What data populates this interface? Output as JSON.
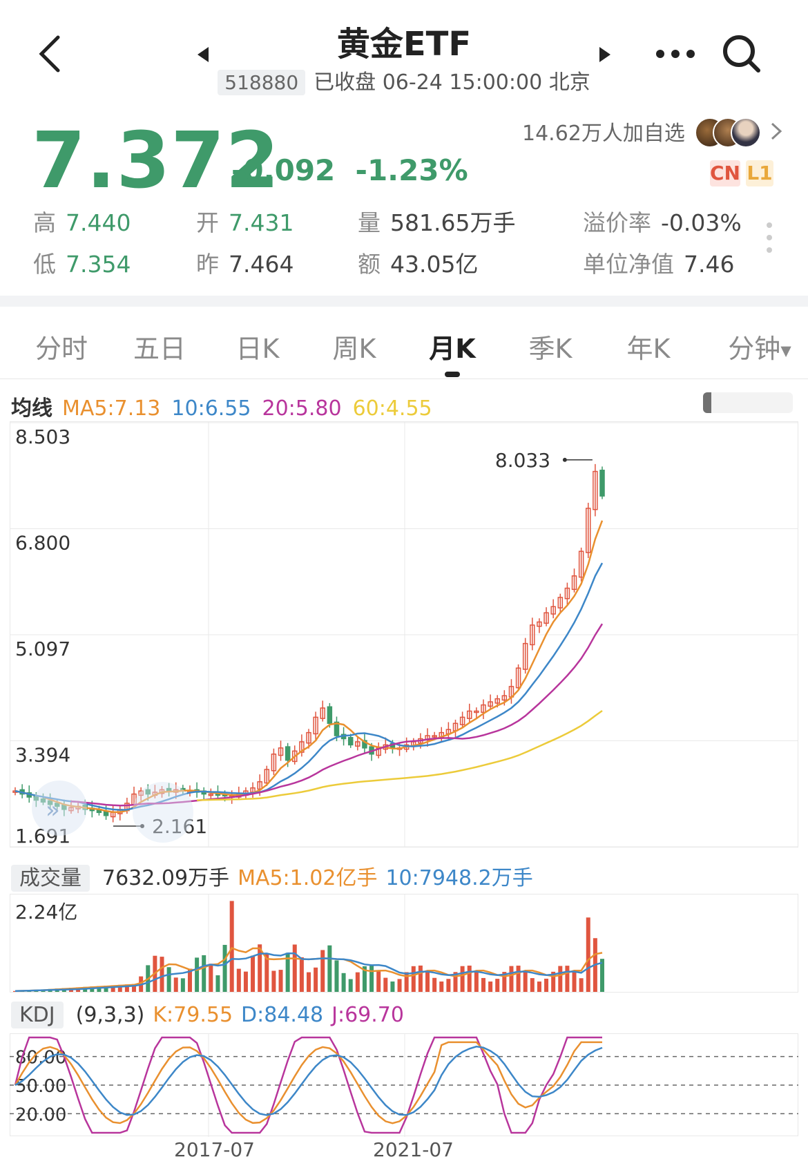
{
  "header": {
    "title": "黄金ETF",
    "code": "518880",
    "status": "已收盘 06-24 15:00:00 北京"
  },
  "quote": {
    "price": "7.372",
    "change": "-0.092",
    "change_pct": "-1.23%",
    "watchers": "14.62万人加自选",
    "badge_cn": "CN",
    "badge_l1": "L1"
  },
  "stats": {
    "high_label": "高",
    "high": "7.440",
    "low_label": "低",
    "low": "7.354",
    "open_label": "开",
    "open": "7.431",
    "prev_label": "昨",
    "prev": "7.464",
    "volume_label": "量",
    "volume": "581.65万手",
    "amount_label": "额",
    "amount": "43.05亿",
    "premium_label": "溢价率",
    "premium": "-0.03%",
    "nav_label": "单位净值",
    "nav": "7.46"
  },
  "tabs": [
    "分时",
    "五日",
    "日K",
    "周K",
    "月K",
    "季K",
    "年K",
    "分钟"
  ],
  "active_tab": 4,
  "colors": {
    "up": "#e0553f",
    "down": "#3f9a6a",
    "ma5": "#e9902f",
    "ma10": "#3d87c8",
    "ma20": "#b8359c",
    "ma60": "#eccb3a",
    "grid": "#e8e8e8"
  },
  "ma_legend": {
    "label": "均线",
    "ma5": "MA5:7.13",
    "ma10": "10:6.55",
    "ma20": "20:5.80",
    "ma60": "60:4.55"
  },
  "volume_legend": {
    "label": "成交量",
    "current": "7632.09万手",
    "ma5": "MA5:1.02亿手",
    "ma10": "10:7948.2万手"
  },
  "kdj_legend": {
    "label": "KDJ",
    "params": "(9,3,3)",
    "k": "K:79.55",
    "d": "D:84.48",
    "j": "J:69.70"
  },
  "chart_data": [
    {
      "type": "candlestick",
      "title": "月K",
      "y_ticks": [
        "8.503",
        "6.800",
        "5.097",
        "3.394",
        "1.691"
      ],
      "ylim": [
        1.691,
        8.503
      ],
      "x_ticks": [
        "2017-07",
        "2021-07"
      ],
      "max_label": "8.033",
      "min_label": "2.161",
      "series": [
        {
          "name": "MA5",
          "value": 7.13
        },
        {
          "name": "10",
          "value": 6.55
        },
        {
          "name": "20",
          "value": 5.8
        },
        {
          "name": "60",
          "value": 4.55
        }
      ],
      "close_path": [
        2.6,
        2.55,
        2.5,
        2.45,
        2.42,
        2.38,
        2.35,
        2.3,
        2.33,
        2.35,
        2.3,
        2.28,
        2.25,
        2.2,
        2.25,
        2.3,
        2.4,
        2.55,
        2.6,
        2.55,
        2.58,
        2.62,
        2.6,
        2.62,
        2.6,
        2.6,
        2.58,
        2.55,
        2.55,
        2.53,
        2.52,
        2.52,
        2.55,
        2.6,
        2.65,
        2.75,
        2.95,
        3.2,
        3.3,
        3.1,
        3.25,
        3.4,
        3.55,
        3.8,
        3.95,
        3.7,
        3.5,
        3.45,
        3.35,
        3.4,
        3.3,
        3.2,
        3.3,
        3.35,
        3.3,
        3.3,
        3.35,
        3.4,
        3.45,
        3.5,
        3.5,
        3.55,
        3.6,
        3.7,
        3.8,
        3.9,
        3.9,
        4.0,
        4.05,
        4.1,
        4.15,
        4.3,
        4.6,
        5.0,
        5.3,
        5.35,
        5.5,
        5.6,
        5.75,
        5.9,
        6.1,
        6.5,
        7.2,
        7.8,
        7.4
      ]
    },
    {
      "type": "bar",
      "title": "成交量",
      "y_ticks": [
        "2.24亿"
      ],
      "ylim": [
        0,
        2.24
      ],
      "unit": "亿手"
    },
    {
      "type": "line",
      "title": "KDJ",
      "y_ticks": [
        "80.00",
        "50.00",
        "20.00"
      ],
      "ylim": [
        0,
        100
      ],
      "series": [
        {
          "name": "K",
          "value": 79.55
        },
        {
          "name": "D",
          "value": 84.48
        },
        {
          "name": "J",
          "value": 69.7
        }
      ]
    }
  ]
}
